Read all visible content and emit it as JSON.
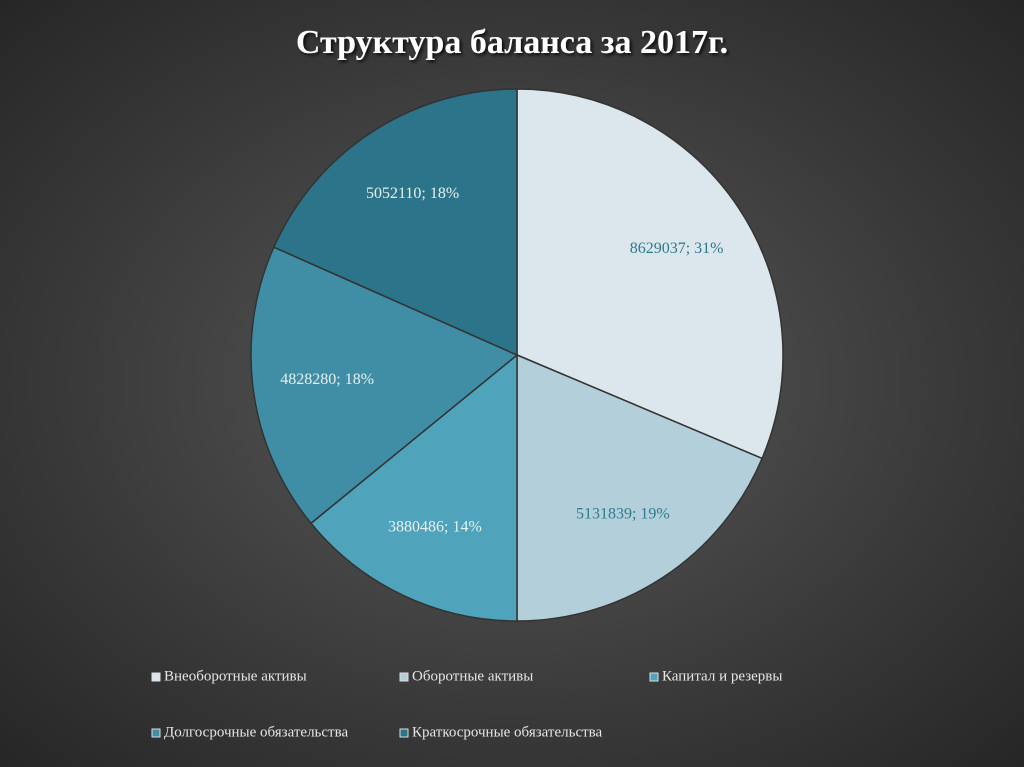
{
  "chart_data": {
    "type": "pie",
    "title": "Структура баланса за 2017г.",
    "categories": [
      "Внеоборотные активы",
      "Оборотные активы",
      "Капитал и резервы",
      "Долгосрочные обязательства",
      "Краткосрочные обязательства"
    ],
    "values": [
      8629037,
      5131839,
      3880486,
      4828280,
      5052110
    ],
    "value_labels": [
      "8629037; 31%",
      "5131839; 19%",
      "3880486; 14%",
      "4828280; 18%",
      "5052110; 18%"
    ],
    "colors": [
      "#dbe7ed",
      "#b3cfd9",
      "#4fa3ba",
      "#3f8ea6",
      "#2c7489"
    ]
  }
}
